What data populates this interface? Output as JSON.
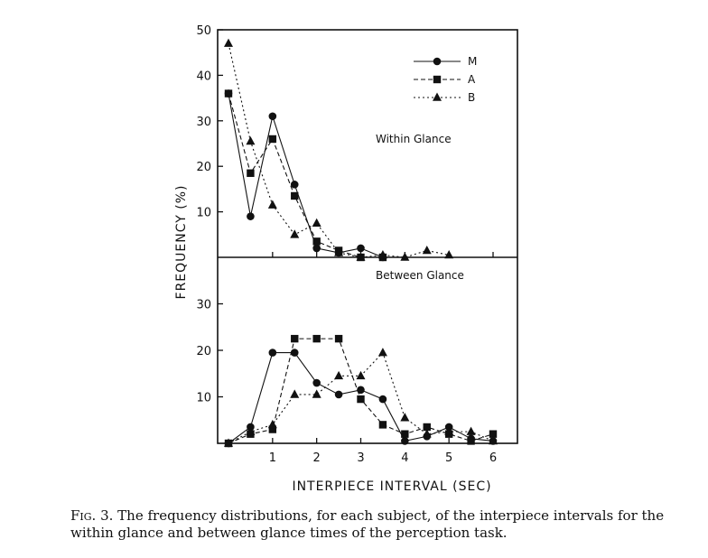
{
  "chart_data": [
    {
      "type": "line",
      "title": "Within Glance",
      "ylabel": "FREQUENCY (%)",
      "xlim": [
        -0.25,
        6.3
      ],
      "ylim": [
        0,
        50
      ],
      "yticks": [
        10,
        20,
        30,
        40,
        50
      ],
      "grid": false,
      "legend": "top-right",
      "x": [
        0,
        0.5,
        1,
        1.5,
        2,
        2.5,
        3,
        3.5,
        4,
        4.5,
        5
      ],
      "series": [
        {
          "name": "M",
          "style": "solid",
          "marker": "circle",
          "values": [
            36,
            9,
            31,
            16,
            2,
            1,
            2,
            0,
            null,
            null,
            null
          ]
        },
        {
          "name": "A",
          "style": "dashed",
          "marker": "square",
          "values": [
            36,
            18.5,
            26,
            13.5,
            3.5,
            1.5,
            0,
            0,
            null,
            null,
            null
          ]
        },
        {
          "name": "B",
          "style": "dotted",
          "marker": "triangle",
          "values": [
            47,
            25.5,
            11.5,
            5,
            7.5,
            1,
            0,
            0.5,
            0,
            1.5,
            0.5
          ]
        }
      ]
    },
    {
      "type": "line",
      "title": "Between Glance",
      "xlabel": "INTERPIECE INTERVAL (SEC)",
      "xlim": [
        -0.25,
        6.3
      ],
      "ylim": [
        0,
        40
      ],
      "xticks": [
        1,
        2,
        3,
        4,
        5,
        6
      ],
      "yticks": [
        10,
        20,
        30
      ],
      "grid": false,
      "x": [
        0,
        0.5,
        1,
        1.5,
        2,
        2.5,
        3,
        3.5,
        4,
        4.5,
        5,
        5.5,
        6
      ],
      "series": [
        {
          "name": "M",
          "style": "solid",
          "marker": "circle",
          "values": [
            0,
            3.5,
            19.5,
            19.5,
            13,
            10.5,
            11.5,
            9.5,
            0.5,
            1.5,
            3.5,
            1,
            0.5
          ]
        },
        {
          "name": "A",
          "style": "dashed",
          "marker": "square",
          "values": [
            0,
            2,
            3,
            22.5,
            22.5,
            22.5,
            9.5,
            4,
            2,
            3.5,
            2,
            0.5,
            2
          ]
        },
        {
          "name": "B",
          "style": "dotted",
          "marker": "triangle",
          "values": [
            0,
            2.5,
            4,
            10.5,
            10.5,
            14.5,
            14.5,
            19.5,
            5.5,
            2,
            2.5,
            2.5,
            0.5
          ]
        }
      ]
    }
  ],
  "caption": {
    "label": "Fig. 3.",
    "text": "The frequency distributions, for each subject, of the interpiece intervals for the within glance and between glance times of the perception task."
  }
}
